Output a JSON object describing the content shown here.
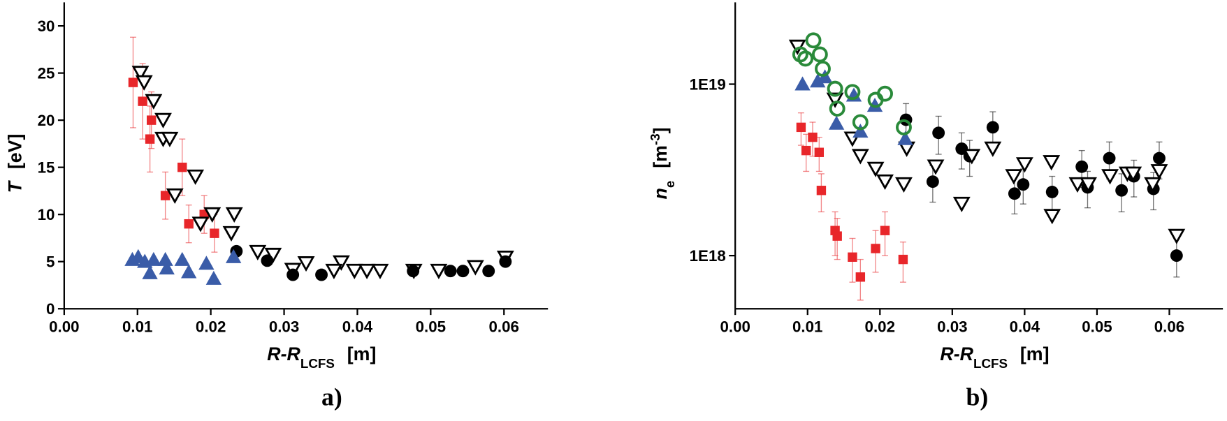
{
  "chart_data": [
    {
      "type": "scatter",
      "caption": "a)",
      "x_label": {
        "text": "R-R",
        "subscript": "LCFS",
        "unit": "[m]"
      },
      "y_label": {
        "text": "T",
        "unit": "[eV]"
      },
      "xlim": [
        0,
        0.066
      ],
      "ylim": [
        0,
        32.5
      ],
      "xticks": [
        {
          "value": 0,
          "label": "0.00"
        },
        0.01,
        0.02,
        0.03,
        0.04,
        0.05,
        0.06
      ],
      "yticks": [
        0,
        5,
        10,
        15,
        20,
        25,
        30
      ],
      "log_y": false,
      "series": [
        {
          "marker": "square",
          "color": "#e8262a",
          "x": [
            0.0094,
            0.0107,
            0.0119,
            0.0117,
            0.0138,
            0.0161,
            0.017,
            0.0191,
            0.0205
          ],
          "values": [
            24,
            22,
            20,
            18,
            12,
            15,
            9,
            10,
            8
          ],
          "errors": [
            4.8,
            4,
            3,
            3.5,
            2.5,
            3,
            2,
            2,
            2
          ]
        },
        {
          "marker": "triangle-down",
          "color": "#000000",
          "x": [
            0.0104,
            0.0109,
            0.0122,
            0.0135,
            0.0135,
            0.0144,
            0.0151,
            0.0179,
            0.0186,
            0.0202,
            0.0232,
            0.0228,
            0.0264,
            0.0285,
            0.0312,
            0.033,
            0.0378,
            0.0368,
            0.0396,
            0.0413,
            0.0431,
            0.0477,
            0.0511,
            0.0561,
            0.0602
          ],
          "values": [
            25,
            24,
            22,
            20,
            18,
            18,
            12,
            14,
            9,
            10,
            10,
            8,
            6,
            5.7,
            4.1,
            4.8,
            4.9,
            4,
            4,
            4,
            4,
            4,
            4,
            4.4,
            5.4
          ]
        },
        {
          "marker": "circle",
          "color": "#000000",
          "x": [
            0.0235,
            0.0277,
            0.0312,
            0.0351,
            0.0476,
            0.0527,
            0.0544,
            0.0579,
            0.0602
          ],
          "values": [
            6.1,
            5.1,
            3.6,
            3.6,
            4,
            4,
            4,
            4,
            5
          ]
        },
        {
          "marker": "triangle-up",
          "color": "#3a5ca8",
          "x": [
            0.0093,
            0.0101,
            0.011,
            0.0117,
            0.0122,
            0.0138,
            0.014,
            0.0161,
            0.017,
            0.0194,
            0.0204,
            0.0231
          ],
          "values": [
            5.2,
            5.5,
            5,
            3.8,
            5.2,
            5.2,
            4.3,
            5.2,
            3.9,
            4.8,
            3.2,
            5.5
          ]
        }
      ]
    },
    {
      "type": "scatter",
      "caption": "b)",
      "x_label": {
        "text": "R-R",
        "subscript": "LCFS",
        "unit": "[m]"
      },
      "y_label": {
        "text": "n",
        "subscript": "e",
        "unit": "[m",
        "superscript": "-3",
        "unit_end": "]"
      },
      "xlim": [
        0,
        0.0674
      ],
      "ylim": [
        4.9e+17,
        3e+19
      ],
      "xticks": [
        {
          "value": 0,
          "label": "0.00"
        },
        0.01,
        0.02,
        0.03,
        0.04,
        0.05,
        0.06
      ],
      "yticks": [
        {
          "value": 1e+18,
          "label": "1E18"
        },
        {
          "value": 1e+19,
          "label": "1E19"
        }
      ],
      "log_y": true,
      "series": [
        {
          "marker": "square",
          "color": "#e8262a",
          "x": [
            0.0091,
            0.0098,
            0.0107,
            0.0116,
            0.0119,
            0.0138,
            0.0141,
            0.0162,
            0.0173,
            0.0194,
            0.0207,
            0.0232
          ],
          "values": [
            5.6e+18,
            4.1e+18,
            4.9e+18,
            4e+18,
            2.4e+18,
            1.4e+18,
            1.3e+18,
            9.8e+17,
            7.5e+17,
            1.1e+18,
            1.4e+18,
            9.5e+17
          ],
          "errors": [
            1.2e+18,
            1e+18,
            1.1e+18,
            9e+17,
            6e+17,
            4e+17,
            3.5e+17,
            2.8e+17,
            2e+17,
            3e+17,
            4e+17,
            2.5e+17
          ]
        },
        {
          "marker": "circle",
          "color": "#000000",
          "x": [
            0.0236,
            0.0281,
            0.0313,
            0.0324,
            0.0356,
            0.0273,
            0.0386,
            0.0398,
            0.0438,
            0.0479,
            0.0487,
            0.0517,
            0.0534,
            0.0551,
            0.0578,
            0.0586,
            0.061
          ],
          "values": [
            6.2e+18,
            5.2e+18,
            4.2e+18,
            3.8e+18,
            5.6e+18,
            2.7e+18,
            2.3e+18,
            2.6e+18,
            2.35e+18,
            3.3e+18,
            2.5e+18,
            3.7e+18,
            2.4e+18,
            2.9e+18,
            2.45e+18,
            3.7e+18,
            1e+18
          ],
          "errors": [
            1.5e+18,
            1.3e+18,
            1e+18,
            9e+17,
            1.3e+18,
            6.5e+17,
            5.5e+17,
            6e+17,
            5.5e+17,
            8e+17,
            6e+17,
            9e+17,
            6e+17,
            7e+17,
            6e+17,
            9e+17,
            2.5e+17
          ]
        },
        {
          "marker": "triangle-down",
          "color": "#000000",
          "x": [
            0.0086,
            0.0138,
            0.0162,
            0.0173,
            0.0194,
            0.0207,
            0.0233,
            0.0237,
            0.0277,
            0.0313,
            0.0327,
            0.0356,
            0.0385,
            0.04,
            0.0437,
            0.0438,
            0.0473,
            0.0488,
            0.0518,
            0.0542,
            0.055,
            0.0577,
            0.0586,
            0.061
          ],
          "values": [
            1.65e+19,
            8.1e+18,
            4.8e+18,
            3.8e+18,
            3.2e+18,
            2.7e+18,
            2.6e+18,
            4.2e+18,
            3.3e+18,
            2e+18,
            3.8e+18,
            4.2e+18,
            2.9e+18,
            3.4e+18,
            3.5e+18,
            1.7e+18,
            2.6e+18,
            2.6e+18,
            2.9e+18,
            3e+18,
            3e+18,
            2.6e+18,
            3.1e+18,
            1.3e+18
          ]
        },
        {
          "marker": "triangle-up",
          "color": "#3a5ca8",
          "x": [
            0.0093,
            0.0114,
            0.0124,
            0.014,
            0.0164,
            0.0173,
            0.0193,
            0.0235
          ],
          "values": [
            1e+19,
            1.04e+19,
            1.1e+19,
            5.9e+18,
            8.6e+18,
            5.3e+18,
            7.5e+18,
            4.8e+18
          ]
        },
        {
          "marker": "open-circle",
          "color": "#2a8a3a",
          "x": [
            0.009,
            0.0097,
            0.0108,
            0.0117,
            0.0121,
            0.0138,
            0.0141,
            0.0162,
            0.0173,
            0.0194,
            0.0207,
            0.0233
          ],
          "values": [
            1.49e+19,
            1.41e+19,
            1.8e+19,
            1.49e+19,
            1.23e+19,
            9.4e+18,
            7.2e+18,
            9e+18,
            6e+18,
            8.1e+18,
            8.8e+18,
            5.6e+18
          ]
        }
      ]
    }
  ]
}
